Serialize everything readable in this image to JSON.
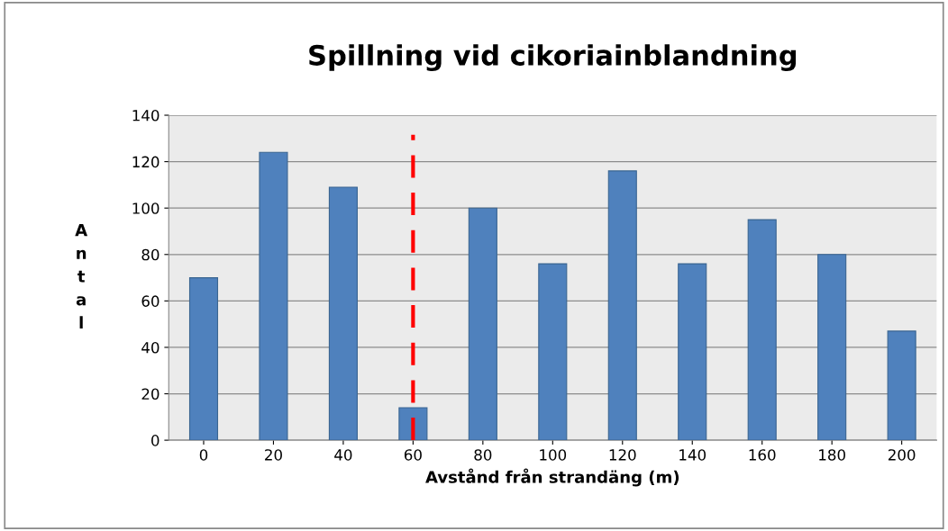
{
  "chart_data": {
    "type": "bar",
    "title": "Spillning vid cikoriainblandning",
    "xlabel": "Avstånd från strandäng (m)",
    "ylabel": "Antal",
    "categories": [
      "0",
      "20",
      "40",
      "60",
      "80",
      "100",
      "120",
      "140",
      "160",
      "180",
      "200"
    ],
    "values": [
      70,
      124,
      109,
      14,
      100,
      76,
      116,
      76,
      95,
      80,
      47
    ],
    "color": "#4f81bd",
    "ylim": [
      0,
      140
    ],
    "yticks": [
      0,
      20,
      40,
      60,
      80,
      100,
      120,
      140
    ],
    "grid": "y",
    "ref_lines": [
      {
        "axis": "x",
        "value": "60",
        "label": null,
        "color": "#ff0000",
        "line_style": "dashed"
      }
    ]
  }
}
